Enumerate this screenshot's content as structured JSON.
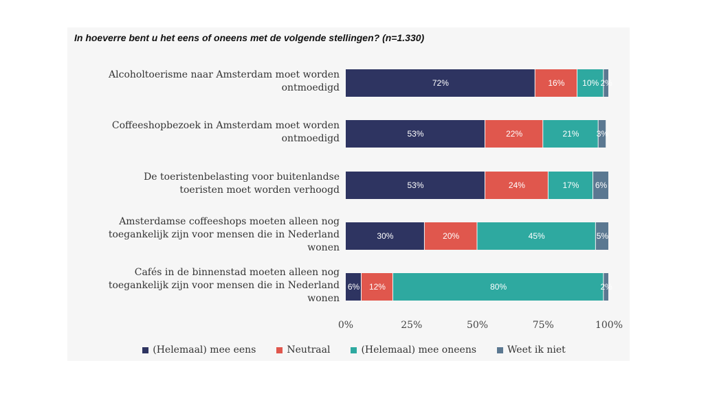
{
  "chart_data": {
    "type": "bar",
    "orientation": "horizontal",
    "stacked": true,
    "title": "In hoeverre bent u het eens of oneens met de volgende stellingen? (n=1.330)",
    "categories": [
      "Alcoholtoerisme naar Amsterdam moet worden ontmoedigd",
      "Coffeeshopbezoek in Amsterdam moet worden ontmoedigd",
      "De toeristenbelasting voor buitenlandse toeristen moet worden verhoogd",
      "Amsterdamse coffeeshops moeten alleen nog toegankelijk zijn voor mensen die in Nederland wonen",
      "Cafés in de binnenstad moeten alleen nog toegankelijk zijn voor mensen die in Nederland wonen"
    ],
    "series": [
      {
        "name": "(Helemaal) mee eens",
        "color": "#2e3461",
        "values": [
          72,
          53,
          53,
          30,
          6
        ],
        "labels": [
          "72%",
          "53%",
          "53%",
          "30%",
          "6%"
        ]
      },
      {
        "name": "Neutraal",
        "color": "#e0574d",
        "values": [
          16,
          22,
          24,
          20,
          12
        ],
        "labels": [
          "16%",
          "22%",
          "24%",
          "20%",
          "12%"
        ]
      },
      {
        "name": "(Helemaal) mee oneens",
        "color": "#2ea9a0",
        "values": [
          10,
          21,
          17,
          45,
          80
        ],
        "labels": [
          "10%",
          "21%",
          "17%",
          "45%",
          "80%"
        ]
      },
      {
        "name": "Weet ik niet",
        "color": "#5b7891",
        "values": [
          2,
          3,
          6,
          5,
          2
        ],
        "labels": [
          "2%",
          "3%",
          "6%",
          "5%",
          "2%"
        ]
      }
    ],
    "xlim": [
      0,
      100
    ],
    "xticks": [
      "0%",
      "25%",
      "50%",
      "75%",
      "100%"
    ],
    "legend_position": "bottom",
    "grid": false
  },
  "category_lines": [
    [
      "Alcoholtoerisme naar Amsterdam moet worden",
      "ontmoedigd"
    ],
    [
      "Coffeeshopbezoek in Amsterdam moet worden",
      "ontmoedigd"
    ],
    [
      "De toeristenbelasting voor buitenlandse",
      "toeristen moet worden verhoogd"
    ],
    [
      "Amsterdamse coffeeshops moeten alleen nog",
      "toegankelijk zijn voor mensen die in Nederland",
      "wonen"
    ],
    [
      "Cafés in de binnenstad moeten alleen nog",
      "toegankelijk zijn voor mensen die in Nederland",
      "wonen"
    ]
  ]
}
